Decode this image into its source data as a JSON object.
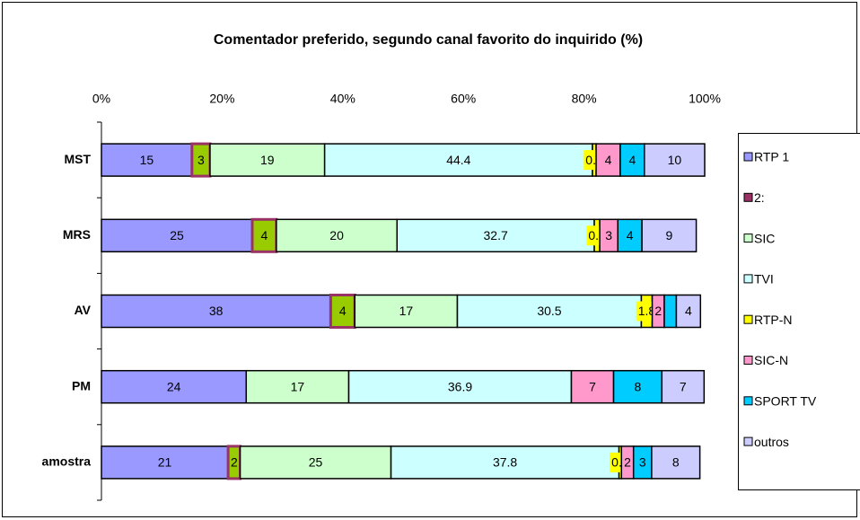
{
  "chart_data": {
    "type": "bar",
    "orientation": "horizontal",
    "stacked": true,
    "title": "Comentador preferido, segundo canal favorito do inquirido (%)",
    "categories": [
      "MST",
      "MRS",
      "AV",
      "PM",
      "amostra"
    ],
    "xlim": [
      0,
      100
    ],
    "xticks": [
      {
        "value": 0,
        "label": "0%"
      },
      {
        "value": 20,
        "label": "20%"
      },
      {
        "value": 40,
        "label": "40%"
      },
      {
        "value": 60,
        "label": "60%"
      },
      {
        "value": 80,
        "label": "80%"
      },
      {
        "value": 100,
        "label": "100%"
      }
    ],
    "legend": "right",
    "series": [
      {
        "name": "RTP 1",
        "color": "#9999ff",
        "values": [
          15,
          25,
          38,
          24,
          21
        ]
      },
      {
        "name": "2:",
        "color": "#993366",
        "fill": "#99cc00",
        "values": [
          3,
          4,
          4,
          null,
          2
        ]
      },
      {
        "name": "SIC",
        "color": "#ccffcc",
        "values": [
          19,
          20,
          17,
          17,
          25
        ]
      },
      {
        "name": "TVI",
        "color": "#ccffff",
        "values": [
          44.4,
          32.7,
          30.5,
          36.9,
          37.8
        ]
      },
      {
        "name": "RTP-N",
        "color": "#ffff00",
        "values": [
          0.6,
          0.9,
          1.8,
          null,
          0.4
        ]
      },
      {
        "name": "SIC-N",
        "color": "#ff99cc",
        "values": [
          4,
          3,
          2,
          7,
          2
        ]
      },
      {
        "name": "SPORT TV",
        "color": "#00ccff",
        "values": [
          4,
          4,
          2,
          8,
          3
        ],
        "value_labels": [
          "4",
          "4",
          null,
          "8",
          "3"
        ]
      },
      {
        "name": "outros",
        "color": "#ccccff",
        "values": [
          10,
          9,
          4,
          7,
          8
        ]
      }
    ]
  }
}
